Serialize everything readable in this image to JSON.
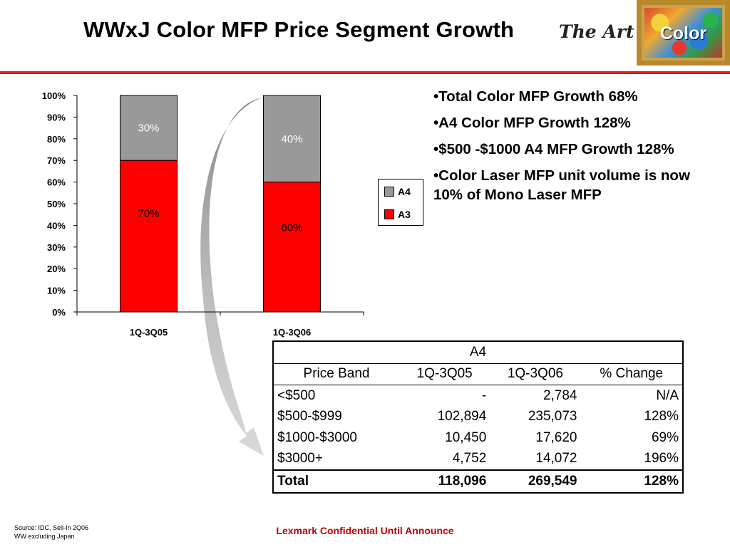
{
  "header": {
    "title": "WWxJ Color MFP Price Segment Growth",
    "logo_script": "The Art of",
    "logo_word": "Color"
  },
  "chart_data": {
    "type": "bar",
    "stacked": true,
    "categories": [
      "1Q-3Q05",
      "1Q-3Q06"
    ],
    "series": [
      {
        "name": "A3",
        "values": [
          70,
          60
        ],
        "color": "#ff0000"
      },
      {
        "name": "A4",
        "values": [
          30,
          40
        ],
        "color": "#999999"
      }
    ],
    "yticks": [
      "0%",
      "10%",
      "20%",
      "30%",
      "40%",
      "50%",
      "60%",
      "70%",
      "80%",
      "90%",
      "100%"
    ],
    "ylim": [
      0,
      100
    ],
    "data_labels": [
      [
        "70%",
        "30%"
      ],
      [
        "60%",
        "40%"
      ]
    ],
    "legend": {
      "position": "right",
      "entries": [
        "A4",
        "A3"
      ]
    }
  },
  "bullets": [
    "•Total Color MFP Growth 68%",
    "•A4 Color MFP Growth 128%",
    "•$500 -$1000 A4 MFP Growth 128%",
    "•Color Laser MFP unit volume is now 10% of Mono Laser MFP"
  ],
  "table": {
    "title": "A4",
    "headers": [
      "Price Band",
      "1Q-3Q05",
      "1Q-3Q06",
      "% Change"
    ],
    "rows": [
      [
        "<$500",
        "-",
        "2,784",
        "N/A"
      ],
      [
        "$500-$999",
        "102,894",
        "235,073",
        "128%"
      ],
      [
        "$1000-$3000",
        "10,450",
        "17,620",
        "69%"
      ],
      [
        "$3000+",
        "4,752",
        "14,072",
        "196%"
      ]
    ],
    "total": [
      "Total",
      "118,096",
      "269,549",
      "128%"
    ]
  },
  "footer": {
    "source_line1": "Source: IDC, Sell-In 2Q06",
    "source_line2": "WW excluding Japan",
    "confidential": "Lexmark Confidential Until Announce"
  }
}
